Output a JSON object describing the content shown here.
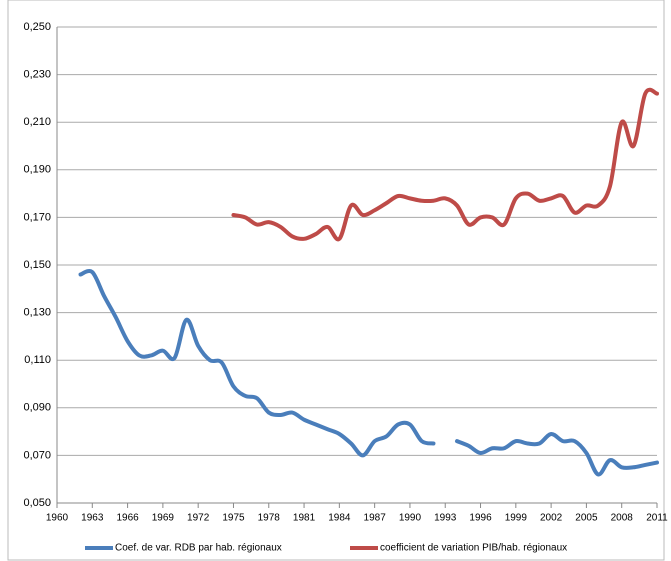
{
  "chart_data": {
    "type": "line",
    "x": [
      1962,
      1963,
      1964,
      1965,
      1966,
      1967,
      1968,
      1969,
      1970,
      1971,
      1972,
      1973,
      1974,
      1975,
      1976,
      1977,
      1978,
      1979,
      1980,
      1981,
      1982,
      1983,
      1984,
      1985,
      1986,
      1987,
      1988,
      1989,
      1990,
      1991,
      1992,
      1993,
      1994,
      1995,
      1996,
      1997,
      1998,
      1999,
      2000,
      2001,
      2002,
      2003,
      2004,
      2005,
      2006,
      2007,
      2008,
      2009,
      2010,
      2011
    ],
    "series": [
      {
        "name": "Coef. de var. RDB par hab. régionaux",
        "color": "#4a7ebb",
        "values": [
          0.146,
          0.147,
          0.137,
          0.128,
          0.118,
          0.112,
          0.112,
          0.114,
          0.111,
          0.127,
          0.116,
          0.11,
          0.109,
          0.099,
          0.095,
          0.094,
          0.088,
          0.087,
          0.088,
          0.085,
          0.083,
          0.081,
          0.079,
          0.075,
          0.07,
          0.076,
          0.078,
          0.083,
          0.083,
          0.076,
          0.075,
          null,
          0.076,
          0.074,
          0.071,
          0.073,
          0.073,
          0.076,
          0.075,
          0.075,
          0.079,
          0.076,
          0.076,
          0.071,
          0.062,
          0.068,
          0.065,
          0.065,
          0.066,
          0.067
        ]
      },
      {
        "name": "coefficient de variation PIB/hab. régionaux",
        "color": "#be4b48",
        "values": [
          null,
          null,
          null,
          null,
          null,
          null,
          null,
          null,
          null,
          null,
          null,
          null,
          null,
          0.171,
          0.17,
          0.167,
          0.168,
          0.166,
          0.162,
          0.161,
          0.163,
          0.166,
          0.161,
          0.175,
          0.171,
          0.173,
          0.176,
          0.179,
          0.178,
          0.177,
          0.177,
          0.178,
          0.175,
          0.167,
          0.17,
          0.17,
          0.167,
          0.178,
          0.18,
          0.177,
          0.178,
          0.179,
          0.172,
          0.175,
          0.175,
          0.183,
          0.21,
          0.2,
          0.222,
          0.222
        ]
      }
    ],
    "xlim": [
      1960,
      2011
    ],
    "xticks": [
      1960,
      1963,
      1966,
      1969,
      1972,
      1975,
      1978,
      1981,
      1984,
      1987,
      1990,
      1993,
      1996,
      1999,
      2002,
      2005,
      2008,
      2011
    ],
    "ylim": [
      0.05,
      0.25
    ],
    "yticks": [
      {
        "value": 0.05,
        "label": "0,050"
      },
      {
        "value": 0.07,
        "label": "0,070"
      },
      {
        "value": 0.09,
        "label": "0,090"
      },
      {
        "value": 0.11,
        "label": "0,110"
      },
      {
        "value": 0.13,
        "label": "0,130"
      },
      {
        "value": 0.15,
        "label": "0,150"
      },
      {
        "value": 0.17,
        "label": "0,170"
      },
      {
        "value": 0.19,
        "label": "0,190"
      },
      {
        "value": 0.21,
        "label": "0,210"
      },
      {
        "value": 0.23,
        "label": "0,230"
      },
      {
        "value": 0.25,
        "label": "0,250"
      }
    ],
    "grid": true
  }
}
